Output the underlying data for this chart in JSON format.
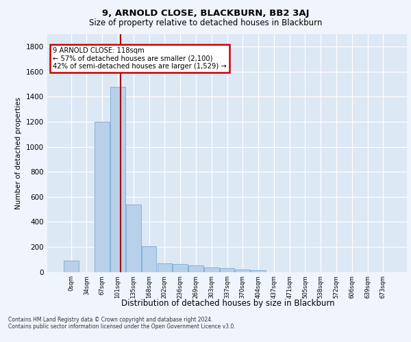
{
  "title1": "9, ARNOLD CLOSE, BLACKBURN, BB2 3AJ",
  "title2": "Size of property relative to detached houses in Blackburn",
  "xlabel": "Distribution of detached houses by size in Blackburn",
  "ylabel": "Number of detached properties",
  "categories": [
    "0sqm",
    "34sqm",
    "67sqm",
    "101sqm",
    "135sqm",
    "168sqm",
    "202sqm",
    "236sqm",
    "269sqm",
    "303sqm",
    "337sqm",
    "370sqm",
    "404sqm",
    "437sqm",
    "471sqm",
    "505sqm",
    "538sqm",
    "572sqm",
    "606sqm",
    "639sqm",
    "673sqm"
  ],
  "values": [
    90,
    0,
    1200,
    1480,
    540,
    205,
    70,
    65,
    50,
    35,
    30,
    20,
    15,
    0,
    0,
    0,
    0,
    0,
    0,
    0,
    0
  ],
  "bar_color": "#b8d0ea",
  "bar_edge_color": "#7aaad0",
  "bar_width": 0.95,
  "vline_x": 3.18,
  "vline_color": "#aa0000",
  "annotation_text": "9 ARNOLD CLOSE: 118sqm\n← 57% of detached houses are smaller (2,100)\n42% of semi-detached houses are larger (1,529) →",
  "annotation_box_color": "#ffffff",
  "annotation_box_edge": "#cc0000",
  "ylim": [
    0,
    1900
  ],
  "yticks": [
    0,
    200,
    400,
    600,
    800,
    1000,
    1200,
    1400,
    1600,
    1800
  ],
  "fig_bg_color": "#f0f4fc",
  "plot_bg_color": "#dde8f5",
  "grid_color": "#ffffff",
  "footer1": "Contains HM Land Registry data © Crown copyright and database right 2024.",
  "footer2": "Contains public sector information licensed under the Open Government Licence v3.0."
}
